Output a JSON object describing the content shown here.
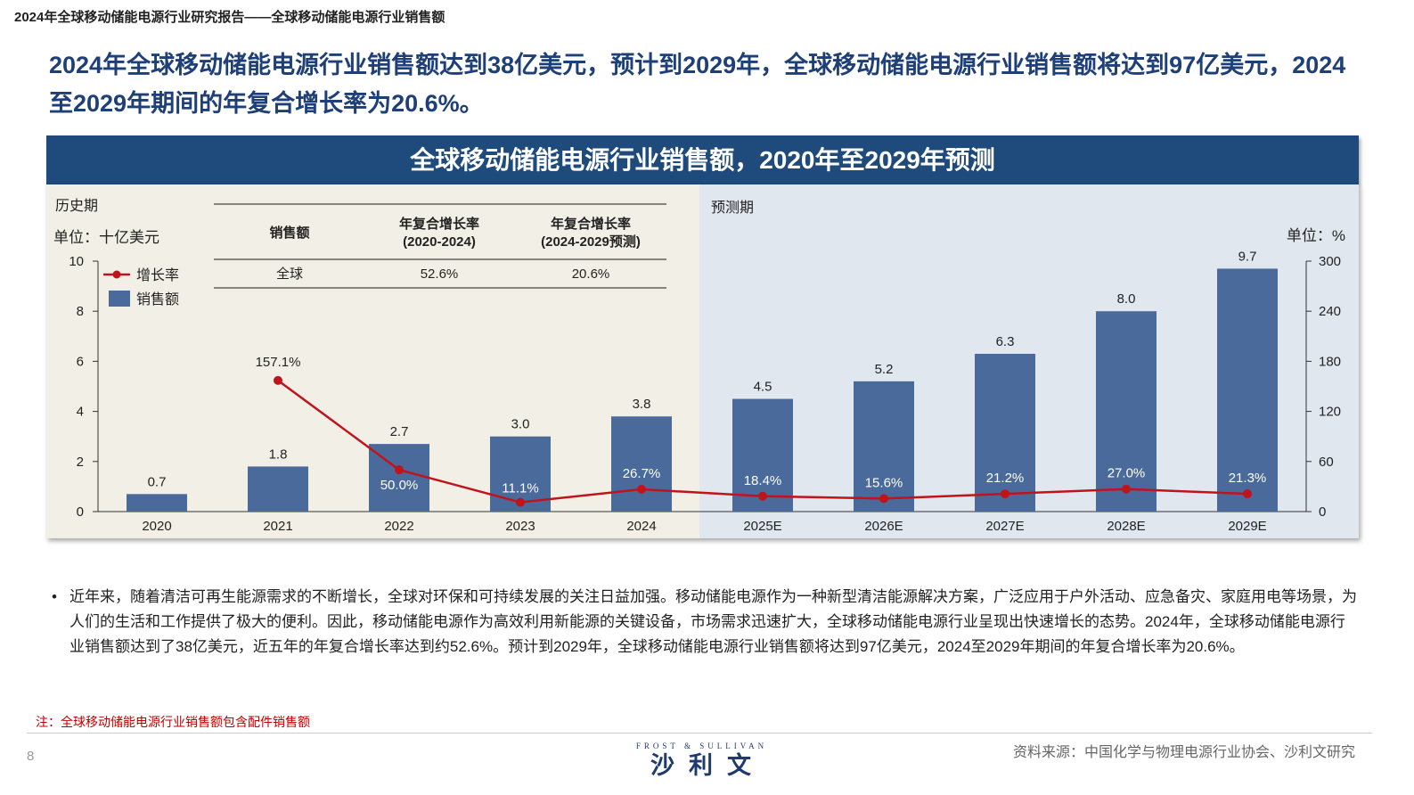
{
  "page": {
    "top_title": "2024年全球移动储能电源行业研究报告——全球移动储能电源行业销售额",
    "headline": "2024年全球移动储能电源行业销售额达到38亿美元，预计到2029年，全球移动储能电源行业销售额将达到97亿美元，2024至2029年期间的年复合增长率为20.6%。",
    "bullet": "近年来，随着清洁可再生能源需求的不断增长，全球对环保和可持续发展的关注日益加强。移动储能电源作为一种新型清洁能源解决方案，广泛应用于户外活动、应急备灾、家庭用电等场景，为人们的生活和工作提供了极大的便利。因此，移动储能电源作为高效利用新能源的关键设备，市场需求迅速扩大，全球移动储能电源行业呈现出快速增长的态势。2024年，全球移动储能电源行业销售额达到了38亿美元，近五年的年复合增长率达到约52.6%。预计到2029年，全球移动储能电源行业销售额将达到97亿美元，2024至2029年期间的年复合增长率为20.6%。",
    "bullet_symbol": "•",
    "footnote": "注：全球移动储能电源行业销售额包含配件销售额",
    "page_number": "8",
    "source": "资料来源：中国化学与物理电源行业协会、沙利文研究",
    "logo_top": "FROST & SULLIVAN",
    "logo_main": "沙利文"
  },
  "chart_data": {
    "type": "bar",
    "title": "全球移动储能电源行业销售额，2020年至2029年预测",
    "period_labels": {
      "history": "历史期",
      "forecast": "预测期"
    },
    "y_left_label": "单位：十亿美元",
    "y_right_label": "单位：%",
    "categories": [
      "2020",
      "2021",
      "2022",
      "2023",
      "2024",
      "2025E",
      "2026E",
      "2027E",
      "2028E",
      "2029E"
    ],
    "forecast_start_index": 5,
    "ylim_left": [
      0,
      10
    ],
    "yticks_left": [
      0,
      2,
      4,
      6,
      8,
      10
    ],
    "ylim_right": [
      0,
      300
    ],
    "yticks_right": [
      0,
      60,
      120,
      180,
      240,
      300
    ],
    "series": [
      {
        "name": "销售额",
        "type": "bar",
        "axis": "left",
        "color": "#4a6a9c",
        "values": [
          0.7,
          1.8,
          2.7,
          3.0,
          3.8,
          4.5,
          5.2,
          6.3,
          8.0,
          9.7
        ],
        "labels": [
          "0.7",
          "1.8",
          "2.7",
          "3.0",
          "3.8",
          "4.5",
          "5.2",
          "6.3",
          "8.0",
          "9.7"
        ]
      },
      {
        "name": "增长率",
        "type": "line",
        "axis": "right",
        "color": "#c0141c",
        "values": [
          null,
          157.1,
          50.0,
          11.1,
          26.7,
          18.4,
          15.6,
          21.2,
          27.0,
          21.3
        ],
        "labels": [
          null,
          "157.1%",
          "50.0%",
          "11.1%",
          "26.7%",
          "18.4%",
          "15.6%",
          "21.2%",
          "27.0%",
          "21.3%"
        ]
      }
    ],
    "legend_position": "top-left",
    "grid": false,
    "cagr_table": {
      "headers": [
        "销售额",
        "年复合增长率\n(2020-2024)",
        "年复合增长率\n(2024-2029预测)"
      ],
      "rows": [
        [
          "全球",
          "52.6%",
          "20.6%"
        ]
      ]
    },
    "colors": {
      "history_bg": "#f2f0e6",
      "forecast_bg": "#e1e7ef",
      "banner": "#1f4a7c"
    }
  }
}
